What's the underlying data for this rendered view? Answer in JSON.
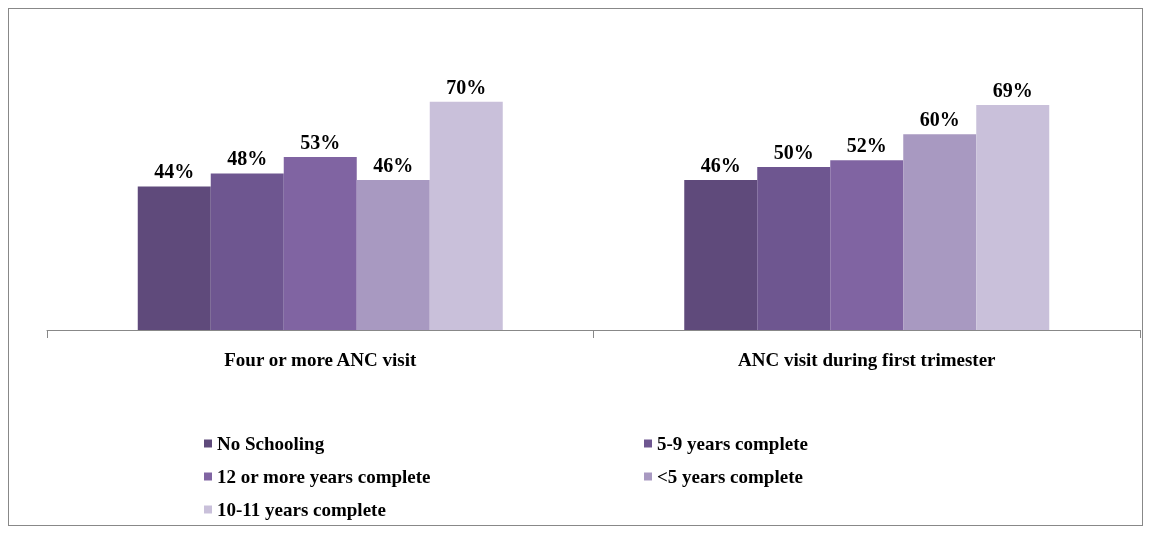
{
  "chart_data": {
    "type": "bar",
    "categories": [
      "Four or more ANC visit",
      "ANC visit during first trimester"
    ],
    "series": [
      {
        "name": "No Schooling",
        "color": "#5f4a7b",
        "values": [
          44,
          46
        ],
        "value_labels": [
          "44%",
          "46%"
        ]
      },
      {
        "name": "5-9 years complete",
        "color": "#6e5690",
        "values": [
          48,
          50
        ],
        "value_labels": [
          "48%",
          "50%"
        ]
      },
      {
        "name": "12 or more years complete",
        "color": "#8064a2",
        "values": [
          53,
          52
        ],
        "value_labels": [
          "53%",
          "52%"
        ]
      },
      {
        "name": "<5 years complete",
        "color": "#a899c1",
        "values": [
          46,
          60
        ],
        "value_labels": [
          "46%",
          "60%"
        ]
      },
      {
        "name": "10-11 years complete",
        "color": "#c9c0da",
        "values": [
          70,
          69
        ],
        "value_labels": [
          "70%",
          "69%"
        ]
      }
    ],
    "legend": "bottom left",
    "grid": false
  }
}
